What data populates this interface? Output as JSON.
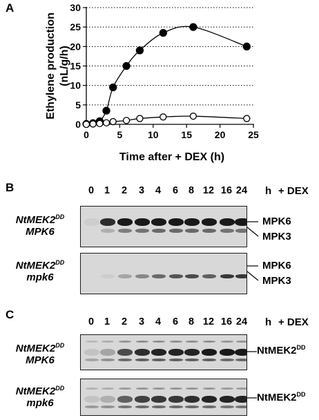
{
  "panel_a": {
    "letter": "A",
    "chart_data": {
      "type": "line",
      "title": "",
      "xlabel": "Time after + DEX (h)",
      "ylabel": "Ethylene production (nL/g/h)",
      "xlim": [
        0,
        25
      ],
      "ylim": [
        0,
        30
      ],
      "x_ticks": [
        0,
        5,
        10,
        15,
        20,
        25
      ],
      "y_ticks": [
        0,
        5,
        10,
        15,
        20,
        25,
        30
      ],
      "grid": "horizontal dotted",
      "series": [
        {
          "marker": "filled-circle",
          "x": [
            0,
            1,
            2,
            3,
            4,
            6,
            8,
            11.5,
            16,
            24
          ],
          "y": [
            0.1,
            0.3,
            0.8,
            3.5,
            9.5,
            15,
            19,
            23.5,
            25,
            20
          ]
        },
        {
          "marker": "open-circle",
          "x": [
            0,
            1,
            2,
            3,
            4,
            6,
            8,
            11.5,
            16,
            24
          ],
          "y": [
            0,
            0.1,
            0.2,
            0.4,
            0.7,
            1.0,
            1.5,
            1.9,
            2.1,
            1.5
          ]
        }
      ]
    }
  },
  "panel_b": {
    "letter": "B",
    "lanes": [
      "0",
      "1",
      "2",
      "3",
      "4",
      "6",
      "8",
      "12",
      "16",
      "24"
    ],
    "h_label": "h",
    "dex_label": "+ DEX",
    "blot1": {
      "gene": "NtMEK2",
      "sup": "DD",
      "genotype": "MPK6",
      "upper_band": "MPK6",
      "lower_band": "MPK3",
      "upper_intensity": [
        0.05,
        0.85,
        0.95,
        0.95,
        0.95,
        0.95,
        0.95,
        0.95,
        0.95,
        0.95
      ],
      "lower_intensity": [
        0,
        0.2,
        0.45,
        0.5,
        0.55,
        0.55,
        0.55,
        0.55,
        0.5,
        0.5
      ]
    },
    "blot2": {
      "gene": "NtMEK2",
      "sup": "DD",
      "genotype": "mpk6",
      "upper_band": "MPK6",
      "lower_band": "MPK3",
      "upper_intensity": [
        0,
        0,
        0,
        0,
        0,
        0,
        0,
        0,
        0,
        0
      ],
      "lower_intensity": [
        0,
        0.05,
        0.25,
        0.4,
        0.55,
        0.65,
        0.7,
        0.6,
        0.8,
        0.8
      ]
    }
  },
  "panel_c": {
    "letter": "C",
    "lanes": [
      "0",
      "1",
      "2",
      "3",
      "4",
      "6",
      "8",
      "12",
      "16",
      "24"
    ],
    "h_label": "h",
    "dex_label": "+ DEX",
    "blot1": {
      "gene": "NtMEK2",
      "sup": "DD",
      "genotype": "MPK6",
      "band_label": "NtMEK2",
      "band_sup": "DD",
      "main_intensity": [
        0.1,
        0.25,
        0.7,
        0.85,
        0.9,
        0.9,
        0.9,
        0.95,
        0.95,
        0.95
      ],
      "lower_intensity": [
        0.25,
        0.35,
        0.55,
        0.6,
        0.6,
        0.6,
        0.6,
        0.6,
        0.55,
        0.55
      ]
    },
    "blot2": {
      "gene": "NtMEK2",
      "sup": "DD",
      "genotype": "mpk6",
      "band_label": "NtMEK2",
      "band_sup": "DD",
      "main_intensity": [
        0.1,
        0.2,
        0.6,
        0.75,
        0.8,
        0.8,
        0.85,
        0.9,
        0.9,
        0.9
      ],
      "lower_intensity": [
        0.3,
        0.35,
        0.5,
        0.55,
        0.55,
        0.55,
        0.55,
        0.55,
        0.5,
        0.5
      ]
    }
  }
}
